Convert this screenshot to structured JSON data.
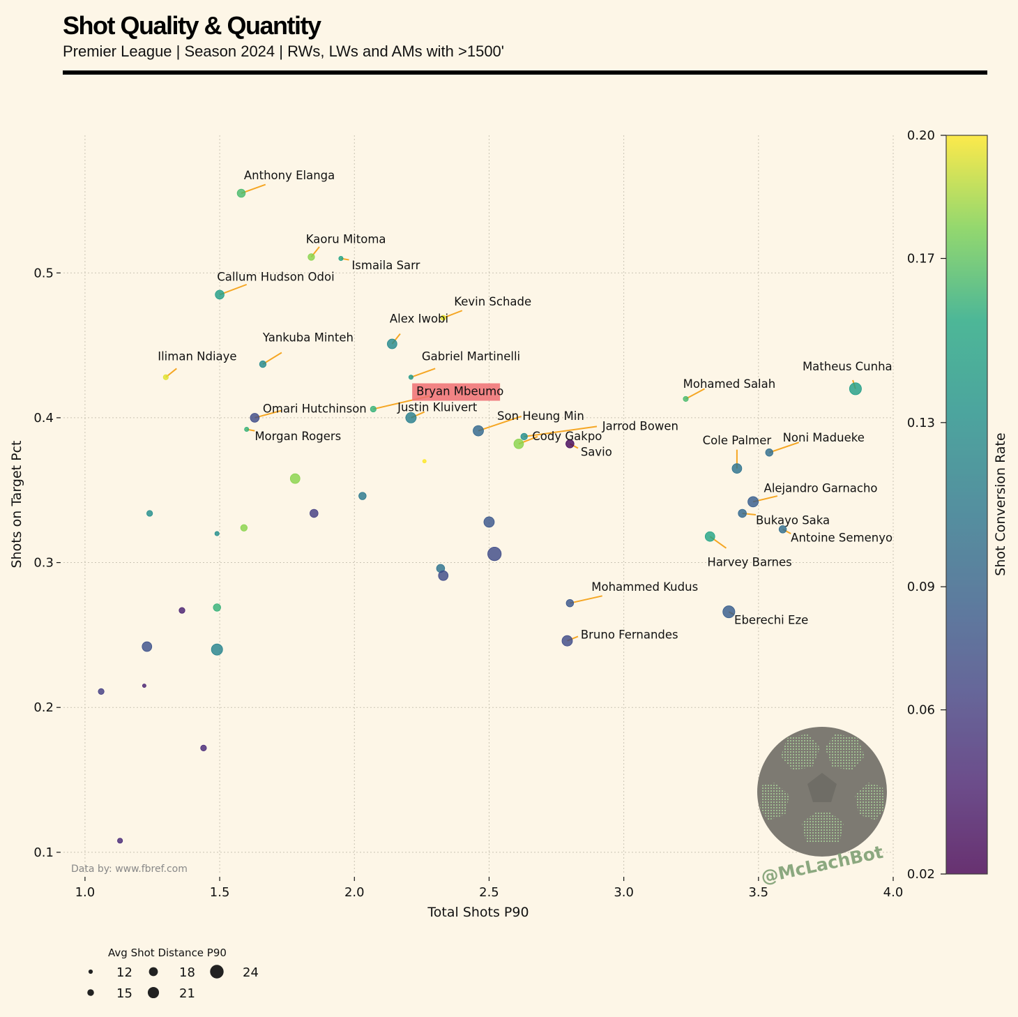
{
  "header": {
    "title": "Shot Quality & Quantity",
    "subtitle": "Premier League | Season 2024 | RWs, LWs and AMs with >1500'"
  },
  "footer": {
    "source": "Data by: www.fbref.com",
    "watermark": "@McLachBot"
  },
  "colors": {
    "background": "#fdf6e7",
    "leader_line": "#f5a623",
    "highlight_box": "#ee6f72",
    "colormap": [
      "#440154",
      "#3b528b",
      "#21918c",
      "#5ec962",
      "#fde725"
    ]
  },
  "chart_data": {
    "type": "scatter",
    "xlabel": "Total Shots P90",
    "ylabel": "Shots on Target Pct",
    "xlim": [
      0.92,
      4.0
    ],
    "ylim": [
      0.085,
      0.595
    ],
    "x_ticks": [
      "1.0",
      "1.5",
      "2.0",
      "2.5",
      "3.0",
      "3.5",
      "4.0"
    ],
    "x_tick_values": [
      1.0,
      1.5,
      2.0,
      2.5,
      3.0,
      3.5,
      4.0
    ],
    "y_ticks": [
      "0.1",
      "0.2",
      "0.3",
      "0.4",
      "0.5"
    ],
    "y_tick_values": [
      0.1,
      0.2,
      0.3,
      0.4,
      0.5
    ],
    "grid": true,
    "colorbar": {
      "label": "Shot Conversion Rate",
      "range": [
        0.02,
        0.2
      ],
      "ticks": [
        "0.02",
        "0.06",
        "0.09",
        "0.13",
        "0.17",
        "0.20"
      ],
      "tick_values": [
        0.02,
        0.06,
        0.09,
        0.13,
        0.17,
        0.2
      ]
    },
    "size_legend": {
      "title": "Avg Shot Distance P90",
      "values": [
        12,
        15,
        18,
        21,
        24
      ]
    },
    "highlight": "Bryan Mbeumo",
    "points": [
      {
        "name": "Anthony Elanga",
        "x": 1.58,
        "y": 0.555,
        "c": 0.165,
        "s": 17,
        "lx": 1.59,
        "ly": 0.567,
        "la": "start",
        "ax": 1.67,
        "ay": 0.561
      },
      {
        "name": "Kaoru Mitoma",
        "x": 1.84,
        "y": 0.511,
        "c": 0.18,
        "s": 15,
        "lx": 1.82,
        "ly": 0.523,
        "la": "start",
        "ax": 1.87,
        "ay": 0.518
      },
      {
        "name": "Ismaila Sarr",
        "x": 1.95,
        "y": 0.51,
        "c": 0.15,
        "s": 12,
        "lx": 1.99,
        "ly": 0.505,
        "la": "start",
        "ax": 1.98,
        "ay": 0.509
      },
      {
        "name": "Callum Hudson Odoi",
        "x": 1.5,
        "y": 0.485,
        "c": 0.145,
        "s": 18,
        "lx": 1.49,
        "ly": 0.497,
        "la": "start",
        "ax": 1.6,
        "ay": 0.492
      },
      {
        "name": "Kevin Schade",
        "x": 2.33,
        "y": 0.469,
        "c": 0.195,
        "s": 13,
        "lx": 2.37,
        "ly": 0.48,
        "la": "start",
        "ax": 2.4,
        "ay": 0.474
      },
      {
        "name": "Alex Iwobi",
        "x": 2.14,
        "y": 0.451,
        "c": 0.125,
        "s": 19,
        "lx": 2.24,
        "ly": 0.468,
        "la": "middle",
        "ax": 2.17,
        "ay": 0.458
      },
      {
        "name": "Yankuba Minteh",
        "x": 1.66,
        "y": 0.437,
        "c": 0.125,
        "s": 15,
        "lx": 1.66,
        "ly": 0.455,
        "la": "start",
        "ax": 1.73,
        "ay": 0.445
      },
      {
        "name": "Iliman Ndiaye",
        "x": 1.3,
        "y": 0.428,
        "c": 0.195,
        "s": 13,
        "lx": 1.27,
        "ly": 0.442,
        "la": "start",
        "ax": 1.34,
        "ay": 0.434
      },
      {
        "name": "Gabriel Martinelli",
        "x": 2.21,
        "y": 0.428,
        "c": 0.14,
        "s": 12,
        "lx": 2.25,
        "ly": 0.442,
        "la": "start",
        "ax": 2.3,
        "ay": 0.434
      },
      {
        "name": "Bryan Mbeumo",
        "x": 2.07,
        "y": 0.406,
        "c": 0.16,
        "s": 14,
        "lx": 2.23,
        "ly": 0.418,
        "la": "start",
        "ax": 2.28,
        "ay": 0.415
      },
      {
        "name": "Matheus Cunha",
        "x": 3.86,
        "y": 0.42,
        "c": 0.145,
        "s": 22,
        "lx": 3.83,
        "ly": 0.435,
        "la": "middle",
        "ax": 3.85,
        "ay": 0.426
      },
      {
        "name": "Mohamed Salah",
        "x": 3.23,
        "y": 0.413,
        "c": 0.165,
        "s": 13,
        "lx": 3.22,
        "ly": 0.423,
        "la": "start",
        "ax": 3.3,
        "ay": 0.42
      },
      {
        "name": "Omari Hutchinson",
        "x": 1.63,
        "y": 0.4,
        "c": 0.07,
        "s": 18,
        "lx": 1.66,
        "ly": 0.406,
        "la": "start",
        "ax": 1.73,
        "ay": 0.405
      },
      {
        "name": "Justin Kluivert",
        "x": 2.21,
        "y": 0.4,
        "c": 0.115,
        "s": 20,
        "lx": 2.16,
        "ly": 0.407,
        "la": "start",
        "ax": 2.26,
        "ay": 0.404
      },
      {
        "name": "Son Heung Min",
        "x": 2.46,
        "y": 0.391,
        "c": 0.095,
        "s": 20,
        "lx": 2.53,
        "ly": 0.401,
        "la": "start",
        "ax": 2.62,
        "ay": 0.401
      },
      {
        "name": "Morgan Rogers",
        "x": 1.6,
        "y": 0.392,
        "c": 0.16,
        "s": 12,
        "lx": 1.63,
        "ly": 0.387,
        "la": "start",
        "ax": 1.63,
        "ay": 0.391
      },
      {
        "name": "Jarrod Bowen",
        "x": 2.63,
        "y": 0.387,
        "c": 0.13,
        "s": 15,
        "lx": 2.92,
        "ly": 0.394,
        "la": "start",
        "ax": 2.9,
        "ay": 0.394
      },
      {
        "name": "Cody Gakpo",
        "x": 2.61,
        "y": 0.382,
        "c": 0.18,
        "s": 19,
        "lx": 2.66,
        "ly": 0.387,
        "la": "start",
        "ax": 2.68,
        "ay": 0.387
      },
      {
        "name": "Savio",
        "x": 2.8,
        "y": 0.382,
        "c": 0.025,
        "s": 17,
        "lx": 2.84,
        "ly": 0.376,
        "la": "start",
        "ax": 2.83,
        "ay": 0.379
      },
      {
        "name": "Noni Madueke",
        "x": 3.54,
        "y": 0.376,
        "c": 0.1,
        "s": 16,
        "lx": 3.59,
        "ly": 0.386,
        "la": "start",
        "ax": 3.65,
        "ay": 0.383
      },
      {
        "name": "Cole Palmer",
        "x": 3.42,
        "y": 0.365,
        "c": 0.105,
        "s": 19,
        "lx": 3.42,
        "ly": 0.384,
        "la": "middle",
        "ax": 3.42,
        "ay": 0.378
      },
      {
        "name": "Alejandro Garnacho",
        "x": 3.48,
        "y": 0.342,
        "c": 0.085,
        "s": 20,
        "lx": 3.52,
        "ly": 0.351,
        "la": "start",
        "ax": 3.57,
        "ay": 0.346
      },
      {
        "name": "Bukayo Saka",
        "x": 3.44,
        "y": 0.334,
        "c": 0.095,
        "s": 17,
        "lx": 3.49,
        "ly": 0.329,
        "la": "start",
        "ax": 3.49,
        "ay": 0.333
      },
      {
        "name": "Antoine Semenyo",
        "x": 3.59,
        "y": 0.323,
        "c": 0.1,
        "s": 16,
        "lx": 3.62,
        "ly": 0.317,
        "la": "start",
        "ax": 3.62,
        "ay": 0.32
      },
      {
        "name": "Harvey Barnes",
        "x": 3.32,
        "y": 0.318,
        "c": 0.15,
        "s": 19,
        "lx": 3.31,
        "ly": 0.3,
        "la": "start",
        "ax": 3.38,
        "ay": 0.31
      },
      {
        "name": "Mohammed Kudus",
        "x": 2.8,
        "y": 0.272,
        "c": 0.08,
        "s": 16,
        "lx": 2.88,
        "ly": 0.283,
        "la": "start",
        "ax": 2.92,
        "ay": 0.277
      },
      {
        "name": "Eberechi Eze",
        "x": 3.39,
        "y": 0.266,
        "c": 0.085,
        "s": 22,
        "lx": 3.41,
        "ly": 0.26,
        "la": "start",
        "ax": 3.41,
        "ay": 0.264
      },
      {
        "name": "Bruno Fernandes",
        "x": 2.79,
        "y": 0.246,
        "c": 0.07,
        "s": 20,
        "lx": 2.84,
        "ly": 0.25,
        "la": "start",
        "ax": 2.83,
        "ay": 0.249
      },
      {
        "x": 2.26,
        "y": 0.37,
        "c": 0.2,
        "s": 11
      },
      {
        "x": 1.78,
        "y": 0.358,
        "c": 0.18,
        "s": 19
      },
      {
        "x": 2.03,
        "y": 0.346,
        "c": 0.11,
        "s": 16
      },
      {
        "x": 1.24,
        "y": 0.334,
        "c": 0.13,
        "s": 14
      },
      {
        "x": 1.85,
        "y": 0.334,
        "c": 0.06,
        "s": 17
      },
      {
        "x": 2.5,
        "y": 0.328,
        "c": 0.08,
        "s": 20
      },
      {
        "x": 1.59,
        "y": 0.324,
        "c": 0.18,
        "s": 15
      },
      {
        "x": 1.49,
        "y": 0.32,
        "c": 0.13,
        "s": 12
      },
      {
        "x": 2.52,
        "y": 0.306,
        "c": 0.07,
        "s": 24
      },
      {
        "x": 2.32,
        "y": 0.296,
        "c": 0.105,
        "s": 17
      },
      {
        "x": 2.33,
        "y": 0.291,
        "c": 0.07,
        "s": 19
      },
      {
        "x": 1.49,
        "y": 0.269,
        "c": 0.16,
        "s": 16
      },
      {
        "x": 1.36,
        "y": 0.267,
        "c": 0.04,
        "s": 14
      },
      {
        "x": 1.23,
        "y": 0.242,
        "c": 0.075,
        "s": 19
      },
      {
        "x": 1.49,
        "y": 0.24,
        "c": 0.12,
        "s": 21
      },
      {
        "x": 1.22,
        "y": 0.215,
        "c": 0.04,
        "s": 11
      },
      {
        "x": 1.06,
        "y": 0.211,
        "c": 0.06,
        "s": 14
      },
      {
        "x": 1.44,
        "y": 0.172,
        "c": 0.045,
        "s": 14
      },
      {
        "x": 1.13,
        "y": 0.108,
        "c": 0.045,
        "s": 13
      }
    ]
  }
}
